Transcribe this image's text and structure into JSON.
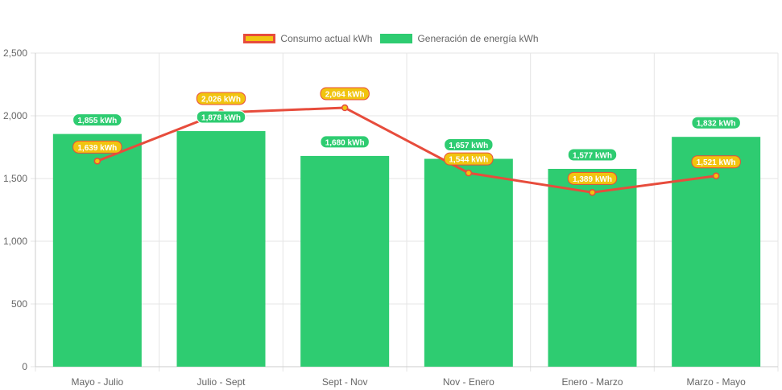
{
  "chart_data": {
    "type": "bar",
    "categories": [
      "Mayo - Julio",
      "Julio - Sept",
      "Sept - Nov",
      "Nov - Enero",
      "Enero - Marzo",
      "Marzo - Mayo"
    ],
    "series": [
      {
        "name": "Consumo actual kWh",
        "type": "line",
        "values": [
          1639,
          2026,
          2064,
          1544,
          1389,
          1521
        ],
        "labels": [
          "1,639 kWh",
          "2,026 kWh",
          "2,064 kWh",
          "1,544 kWh",
          "1,389 kWh",
          "1,521 kWh"
        ],
        "color": "#e74c3c",
        "fill": "#f1c40f"
      },
      {
        "name": "Generación de energía kWh",
        "type": "bar",
        "values": [
          1855,
          1878,
          1680,
          1657,
          1577,
          1832
        ],
        "labels": [
          "1,855 kWh",
          "1,878 kWh",
          "1,680 kWh",
          "1,657 kWh",
          "1,577 kWh",
          "1,832 kWh"
        ],
        "color": "#2ecc71"
      }
    ],
    "y_ticks": [
      "0",
      "500",
      "1,000",
      "1,500",
      "2,000",
      "2,500"
    ],
    "ylim": [
      0,
      2500
    ],
    "grid": true,
    "legend_position": "top-center",
    "xlabel": "",
    "ylabel": ""
  }
}
